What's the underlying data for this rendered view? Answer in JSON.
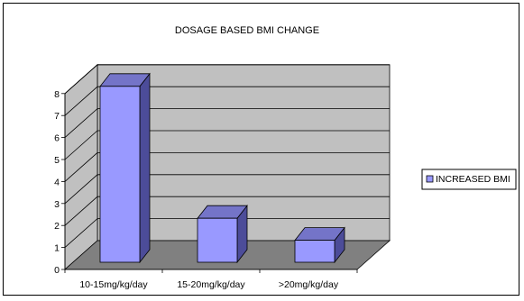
{
  "chart_data": {
    "type": "bar",
    "title": "DOSAGE BASED BMI CHANGE",
    "categories": [
      "10-15mg/kg/day",
      "15-20mg/kg/day",
      ">20mg/kg/day"
    ],
    "series": [
      {
        "name": "INCREASED BMI",
        "values": [
          8,
          2,
          1
        ]
      }
    ],
    "ylim": [
      0,
      8
    ],
    "yticks": [
      "0",
      "1",
      "2",
      "3",
      "4",
      "5",
      "6",
      "7",
      "8"
    ],
    "grid": true,
    "legend": "right",
    "projection": "3d",
    "colors": {
      "bar_front": "#9999ff",
      "bar_side": "#4c4c99",
      "bar_top": "#7474c8",
      "wall": "#c0c0c0",
      "floor": "#808080",
      "gridline": "#000000"
    }
  }
}
